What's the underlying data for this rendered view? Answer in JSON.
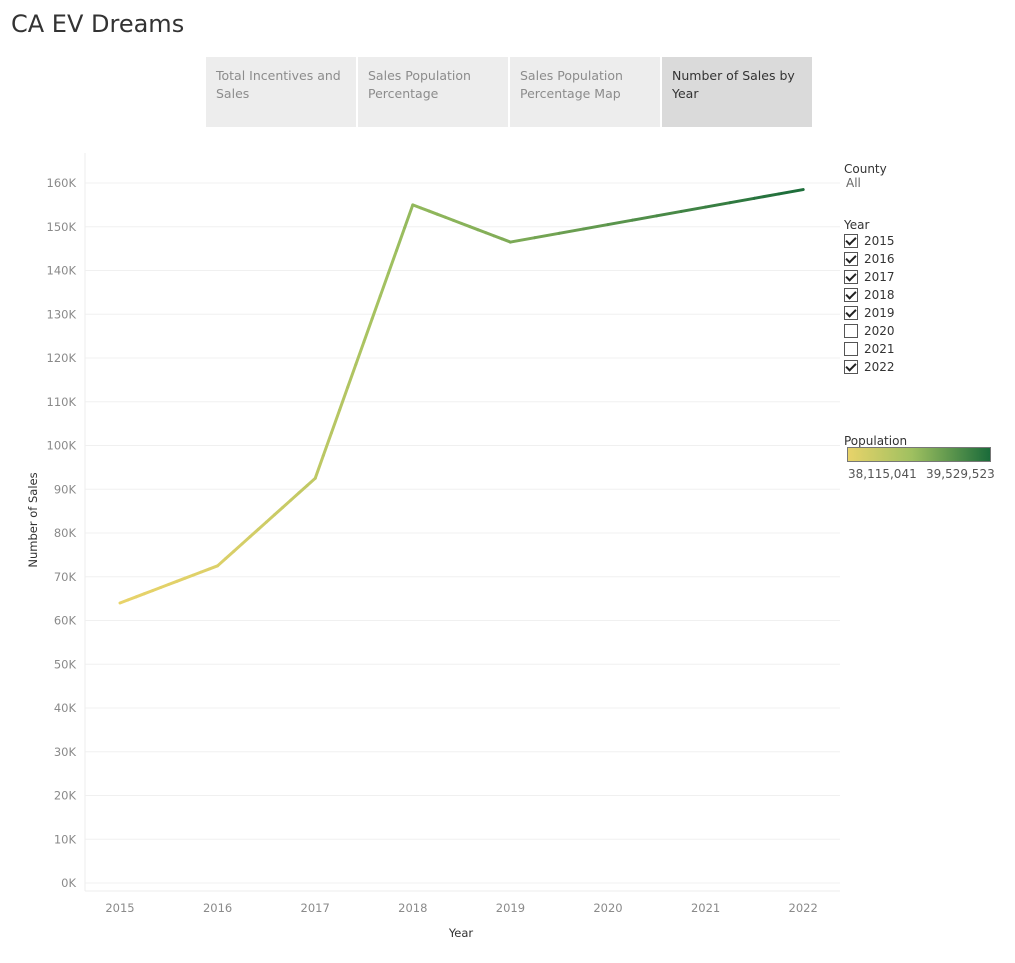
{
  "dashboard": {
    "title": "CA EV Dreams"
  },
  "tabs": [
    {
      "label": "Total Incentives and Sales",
      "active": false
    },
    {
      "label": "Sales Population Percentage",
      "active": false
    },
    {
      "label": "Sales Population Percentage Map",
      "active": false
    },
    {
      "label": "Number of Sales by Year",
      "active": true
    }
  ],
  "filters": {
    "county": {
      "title": "County",
      "value": "All"
    },
    "year": {
      "title": "Year",
      "options": [
        {
          "label": "2015",
          "checked": true
        },
        {
          "label": "2016",
          "checked": true
        },
        {
          "label": "2017",
          "checked": true
        },
        {
          "label": "2018",
          "checked": true
        },
        {
          "label": "2019",
          "checked": true
        },
        {
          "label": "2020",
          "checked": false
        },
        {
          "label": "2021",
          "checked": false
        },
        {
          "label": "2022",
          "checked": true
        }
      ]
    }
  },
  "legend": {
    "title": "Population",
    "min_label": "38,115,041",
    "max_label": "39,529,523",
    "color_low": "#e8d36a",
    "color_mid": "#9fc060",
    "color_high": "#1a6b3a"
  },
  "chart_data": {
    "type": "line",
    "xlabel": "Year",
    "ylabel": "Number of Sales",
    "x_ticks": [
      "2015",
      "2016",
      "2017",
      "2018",
      "2019",
      "2020",
      "2021",
      "2022"
    ],
    "y_ticks": [
      "0K",
      "10K",
      "20K",
      "30K",
      "40K",
      "50K",
      "60K",
      "70K",
      "80K",
      "90K",
      "100K",
      "110K",
      "120K",
      "130K",
      "140K",
      "150K",
      "160K"
    ],
    "ylim": [
      0,
      160000
    ],
    "grid": true,
    "series": [
      {
        "points": [
          {
            "x": "2015",
            "y": 64000,
            "population_t": 0.0
          },
          {
            "x": "2016",
            "y": 72500,
            "population_t": 0.07
          },
          {
            "x": "2017",
            "y": 92500,
            "population_t": 0.25
          },
          {
            "x": "2018",
            "y": 155000,
            "population_t": 0.5
          },
          {
            "x": "2019",
            "y": 146500,
            "population_t": 0.58
          },
          {
            "x": "2022",
            "y": 158500,
            "population_t": 1.0
          }
        ]
      }
    ]
  }
}
